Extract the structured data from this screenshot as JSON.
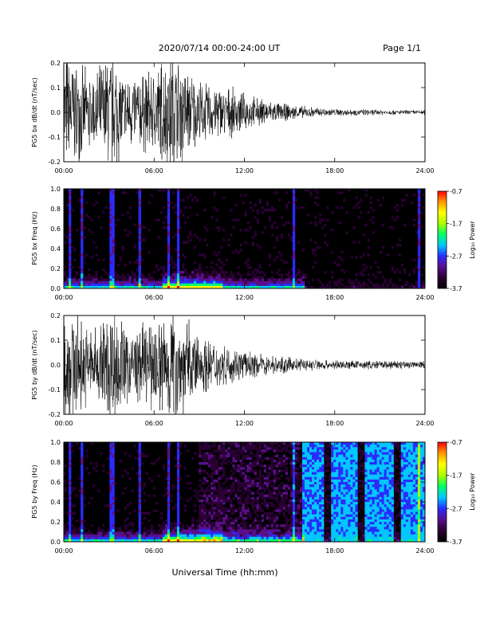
{
  "header": {
    "date_range": "2020/07/14   00:00-24:00 UT",
    "page": "Page 1/1"
  },
  "footer": {
    "xlabel": "Universal Time (hh:mm)"
  },
  "colors": {
    "colorbar": [
      "#000000",
      "#2a0033",
      "#5a0f8a",
      "#2b2bff",
      "#00c8ff",
      "#00ff66",
      "#aaff00",
      "#ffff00",
      "#ff9900",
      "#ff0000"
    ]
  },
  "chart_data": [
    {
      "id": "bx-dbdt",
      "type": "line",
      "ylabel": "PG5 bx dB/dt (nT/sec)",
      "xlim": [
        0,
        24
      ],
      "ylim": [
        -0.2,
        0.2
      ],
      "x_ticks": [
        "00:00",
        "06:00",
        "12:00",
        "18:00",
        "24:00"
      ],
      "y_ticks": [
        "0.2",
        "0.1",
        "0.0",
        "-0.1",
        "-0.2"
      ],
      "envelope": {
        "x_hours": [
          0.0,
          0.5,
          1.0,
          2.0,
          3.0,
          3.5,
          4.0,
          5.0,
          6.0,
          6.8,
          7.3,
          8.0,
          9.0,
          10.0,
          11.0,
          12.0,
          13.0,
          14.0,
          15.0,
          16.0,
          17.0,
          18.0,
          20.0,
          22.0,
          24.0
        ],
        "amplitude": [
          0.2,
          0.2,
          0.15,
          0.12,
          0.2,
          0.2,
          0.12,
          0.13,
          0.14,
          0.2,
          0.2,
          0.16,
          0.1,
          0.09,
          0.08,
          0.06,
          0.045,
          0.035,
          0.025,
          0.02,
          0.015,
          0.012,
          0.01,
          0.008,
          0.008
        ]
      }
    },
    {
      "id": "bx-freq",
      "type": "heatmap",
      "ylabel": "PG5 bx Freq (Hz)",
      "xlim": [
        0,
        24
      ],
      "ylim": [
        0,
        1
      ],
      "x_ticks": [
        "00:00",
        "06:00",
        "12:00",
        "18:00",
        "24:00"
      ],
      "y_ticks": [
        "1.0",
        "0.8",
        "0.6",
        "0.4",
        "0.2",
        "0.0"
      ],
      "colorbar": {
        "label": "Log₁₀ Power",
        "ticks": [
          "-0.7",
          "-1.7",
          "-2.7",
          "-3.7"
        ],
        "range": [
          -3.7,
          -0.7
        ]
      }
    },
    {
      "id": "by-dbdt",
      "type": "line",
      "ylabel": "PG5 by dB/dt (nT/sec)",
      "xlim": [
        0,
        24
      ],
      "ylim": [
        -0.2,
        0.2
      ],
      "x_ticks": [
        "00:00",
        "06:00",
        "12:00",
        "18:00",
        "24:00"
      ],
      "y_ticks": [
        "0.2",
        "0.1",
        "0.0",
        "-0.1",
        "-0.2"
      ],
      "envelope": {
        "x_hours": [
          0.0,
          0.5,
          1.0,
          2.0,
          3.0,
          3.5,
          4.0,
          5.0,
          6.0,
          6.8,
          7.3,
          8.0,
          9.0,
          10.0,
          11.0,
          12.0,
          13.0,
          14.0,
          15.0,
          16.0,
          17.0,
          18.0,
          20.0,
          22.0,
          24.0
        ],
        "amplitude": [
          0.2,
          0.2,
          0.15,
          0.12,
          0.2,
          0.2,
          0.13,
          0.13,
          0.14,
          0.2,
          0.2,
          0.16,
          0.1,
          0.08,
          0.06,
          0.045,
          0.035,
          0.03,
          0.025,
          0.02,
          0.018,
          0.015,
          0.014,
          0.014,
          0.015
        ]
      }
    },
    {
      "id": "by-freq",
      "type": "heatmap",
      "ylabel": "PG5 by Freq (Hz)",
      "xlim": [
        0,
        24
      ],
      "ylim": [
        0,
        1
      ],
      "x_ticks": [
        "00:00",
        "06:00",
        "12:00",
        "18:00",
        "24:00"
      ],
      "y_ticks": [
        "1.0",
        "0.8",
        "0.6",
        "0.4",
        "0.2",
        "0.0"
      ],
      "colorbar": {
        "label": "Log₁₀ Power",
        "ticks": [
          "-0.7",
          "-1.7",
          "-2.7",
          "-3.7"
        ],
        "range": [
          -3.7,
          -0.7
        ]
      }
    }
  ]
}
